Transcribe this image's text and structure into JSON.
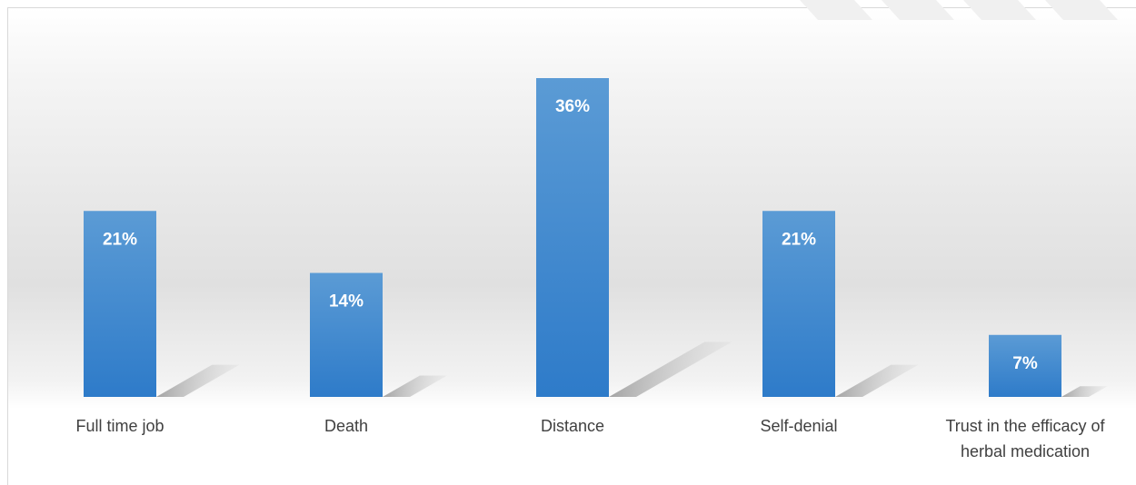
{
  "chart_data": {
    "type": "bar",
    "title": "",
    "xlabel": "",
    "ylabel": "",
    "categories": [
      "Full time job",
      "Death",
      "Distance",
      "Self-denial",
      "Trust in the efficacy of herbal medication"
    ],
    "category_lines": [
      [
        "Full time job"
      ],
      [
        "Death"
      ],
      [
        "Distance"
      ],
      [
        "Self-denial"
      ],
      [
        "Trust in the efficacy of",
        "herbal medication"
      ]
    ],
    "values": [
      21,
      14,
      36,
      21,
      7
    ],
    "data_labels": [
      "21%",
      "14%",
      "36%",
      "21%",
      "7%"
    ],
    "ylim": [
      0,
      36
    ],
    "grid": false,
    "legend": "none",
    "bar_color_top": "#5b9bd5",
    "bar_color_bottom": "#2e7bc9",
    "label_color": "#ffffff"
  }
}
